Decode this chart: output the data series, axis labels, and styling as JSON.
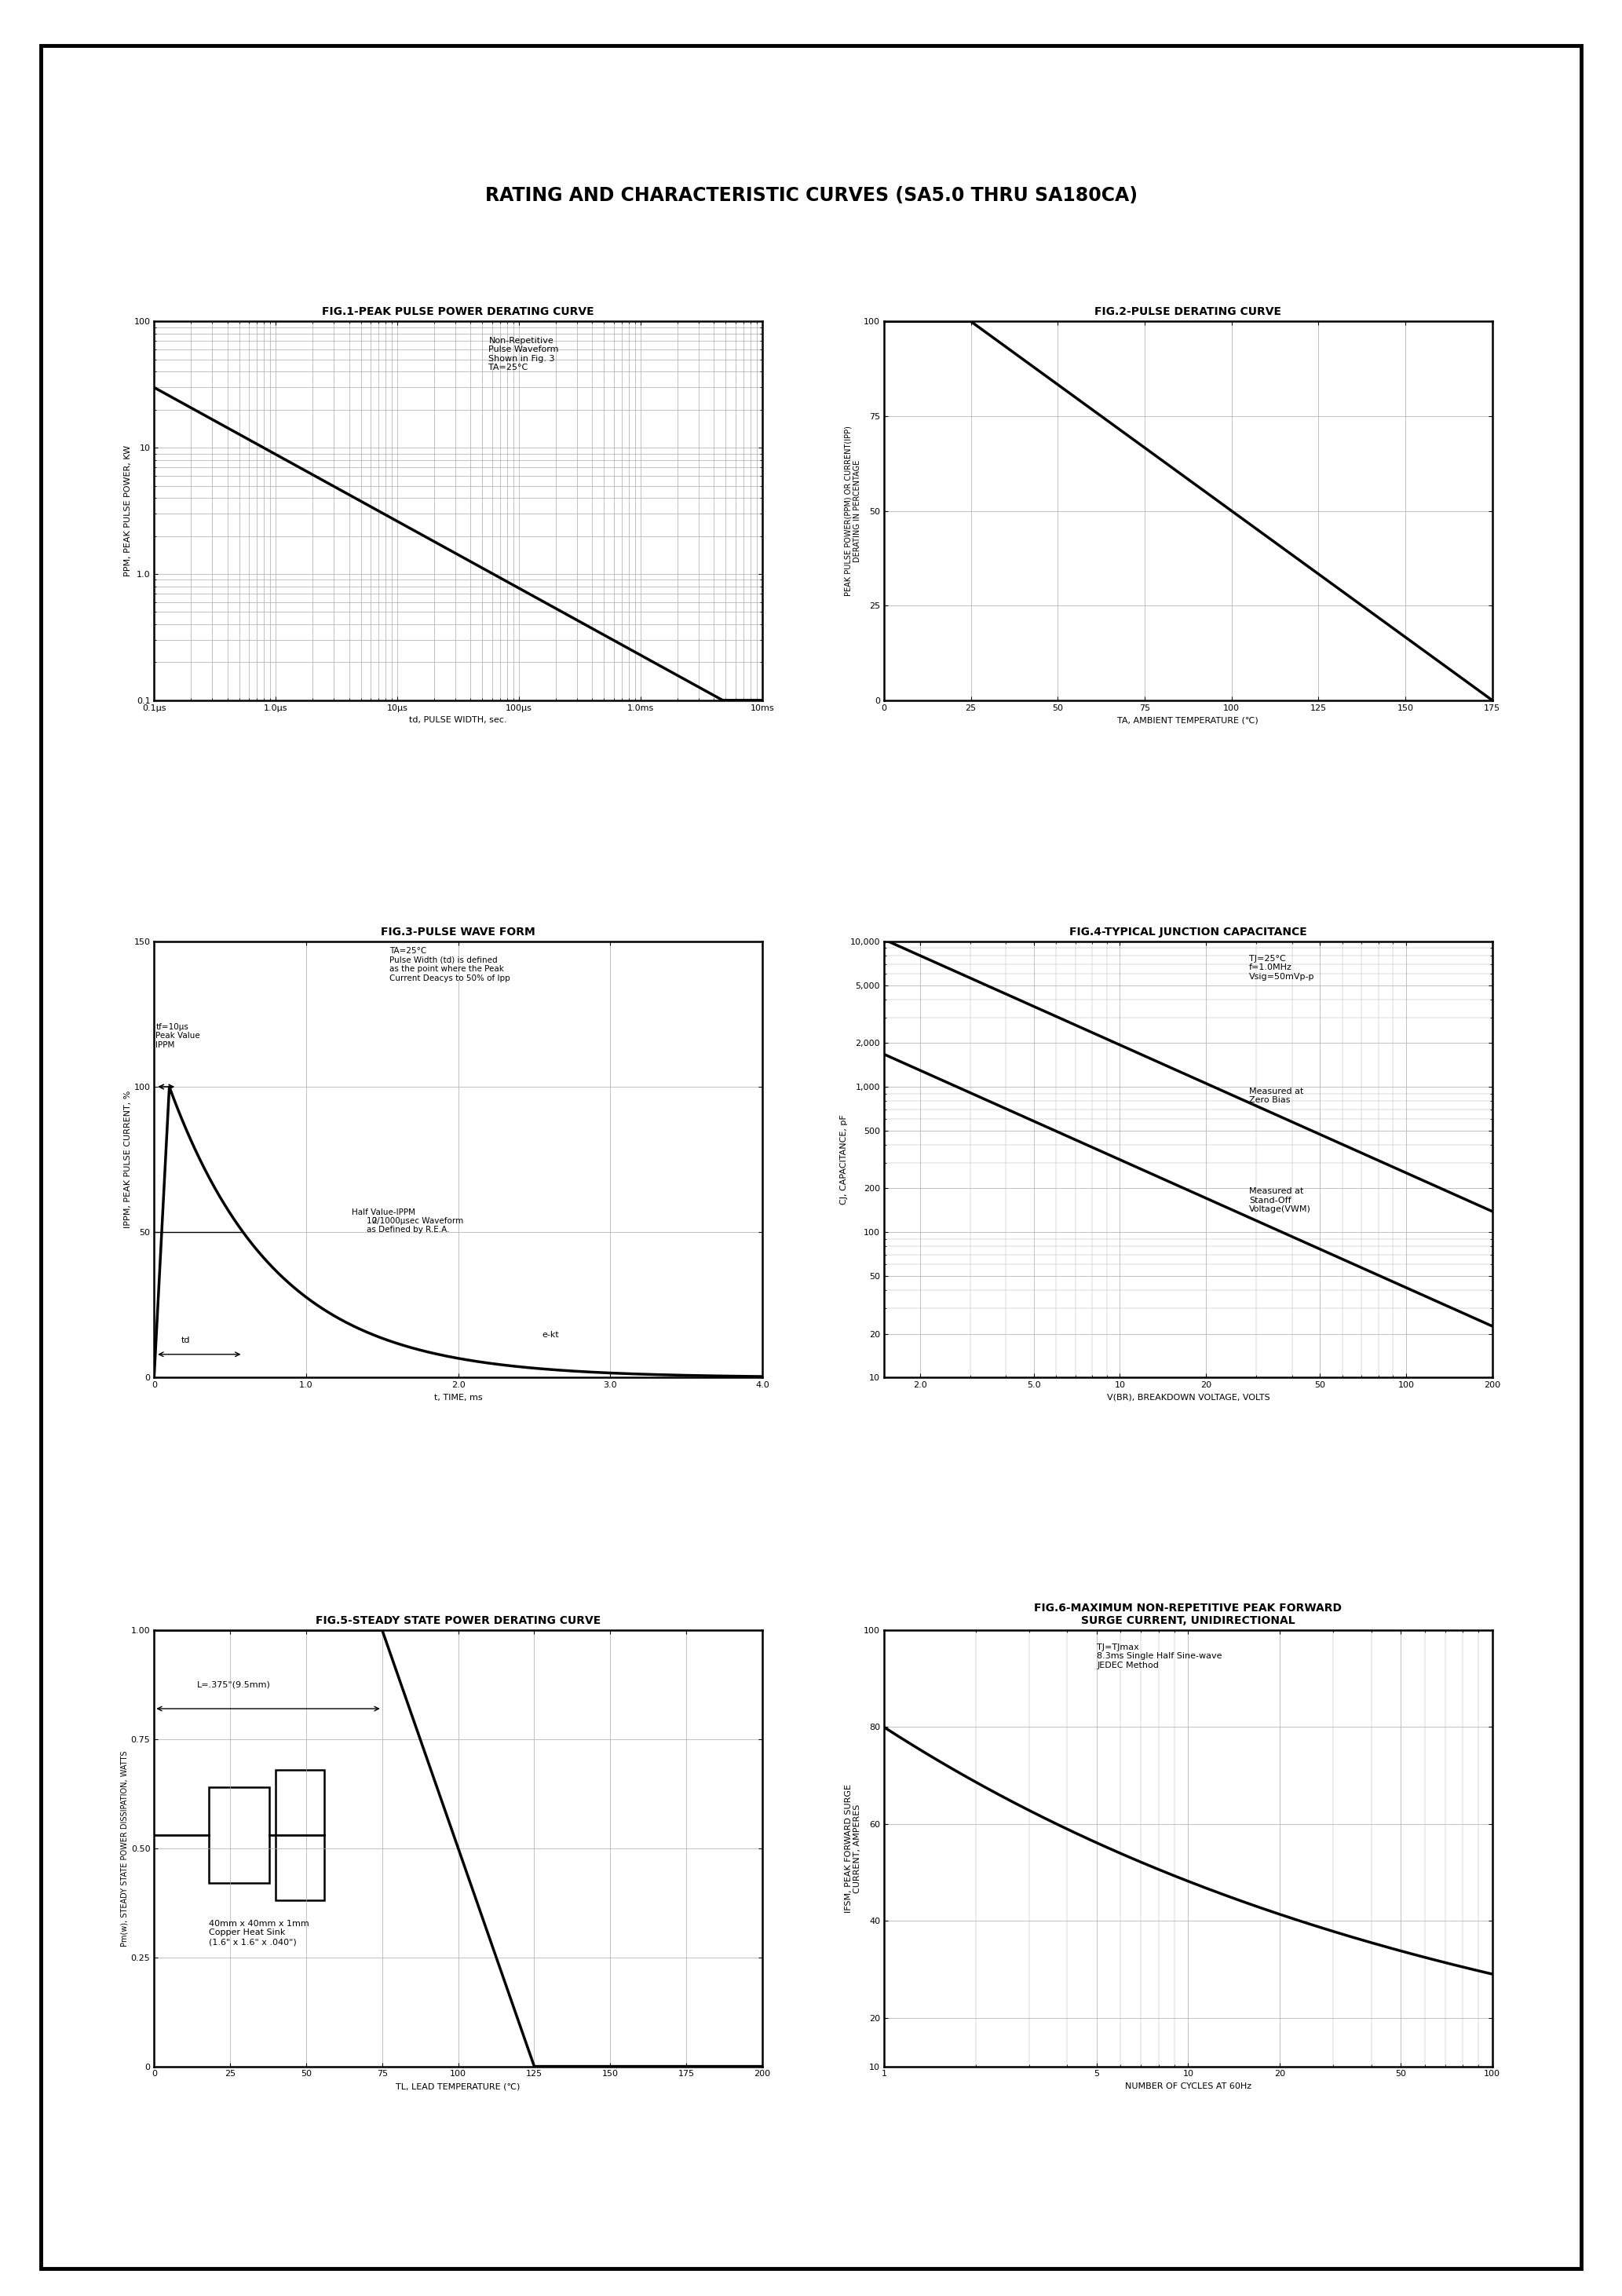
{
  "page_title": "RATING AND CHARACTERISTIC CURVES (SA5.0 THRU SA180CA)",
  "fig1_title": "FIG.1-PEAK PULSE POWER DERATING CURVE",
  "fig2_title": "FIG.2-PULSE DERATING CURVE",
  "fig3_title": "FIG.3-PULSE WAVE FORM",
  "fig4_title": "FIG.4-TYPICAL JUNCTION CAPACITANCE",
  "fig5_title": "FIG.5-STEADY STATE POWER DERATING CURVE",
  "fig6_title": "FIG.6-MAXIMUM NON-REPETITIVE PEAK FORWARD\nSURGE CURRENT, UNIDIRECTIONAL",
  "bg_color": "#ffffff",
  "line_color": "#000000",
  "grid_color": "#aaaaaa",
  "border_color": "#000000",
  "title_fontsize": 17,
  "subtitle_fontsize": 10,
  "axis_label_fontsize": 8,
  "tick_fontsize": 8,
  "annot_fontsize": 8
}
